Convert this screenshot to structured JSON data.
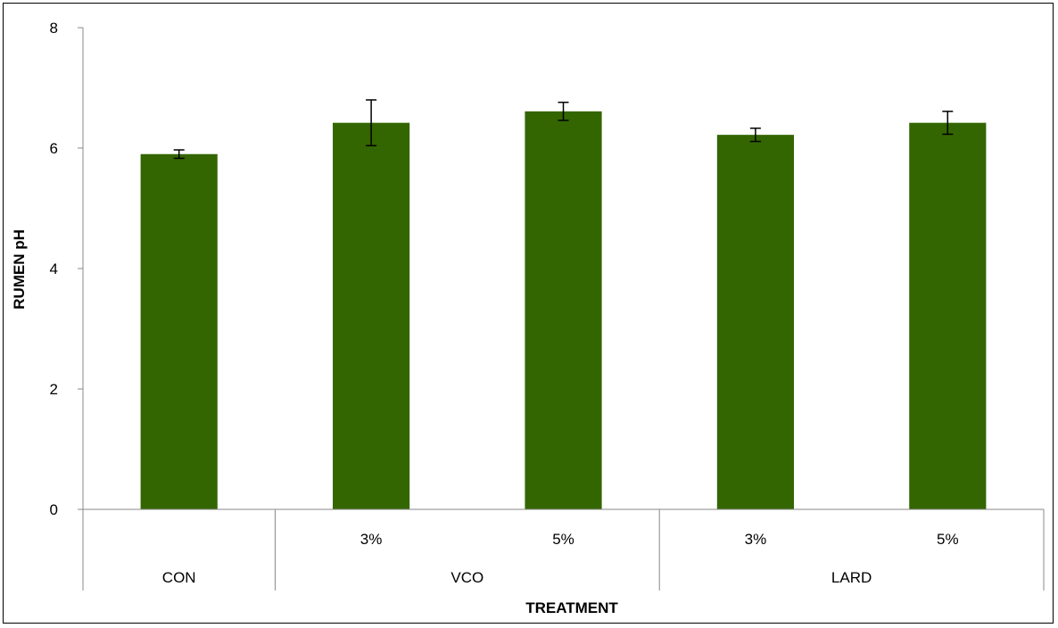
{
  "chart_data": {
    "type": "bar",
    "title": "",
    "xlabel": "TREATMENT",
    "ylabel": "RUMEN pH",
    "ylim": [
      0,
      8
    ],
    "yticks": [
      0,
      2,
      4,
      6,
      8
    ],
    "grid": false,
    "legend": "none",
    "bar_color": "#336600",
    "groups": [
      {
        "label": "CON",
        "categories": [
          ""
        ]
      },
      {
        "label": "VCO",
        "categories": [
          "3%",
          "5%"
        ]
      },
      {
        "label": "LARD",
        "categories": [
          "3%",
          "5%"
        ]
      }
    ],
    "values": [
      5.9,
      6.42,
      6.61,
      6.22,
      6.42
    ],
    "errors": [
      0.07,
      0.38,
      0.15,
      0.11,
      0.19
    ]
  }
}
